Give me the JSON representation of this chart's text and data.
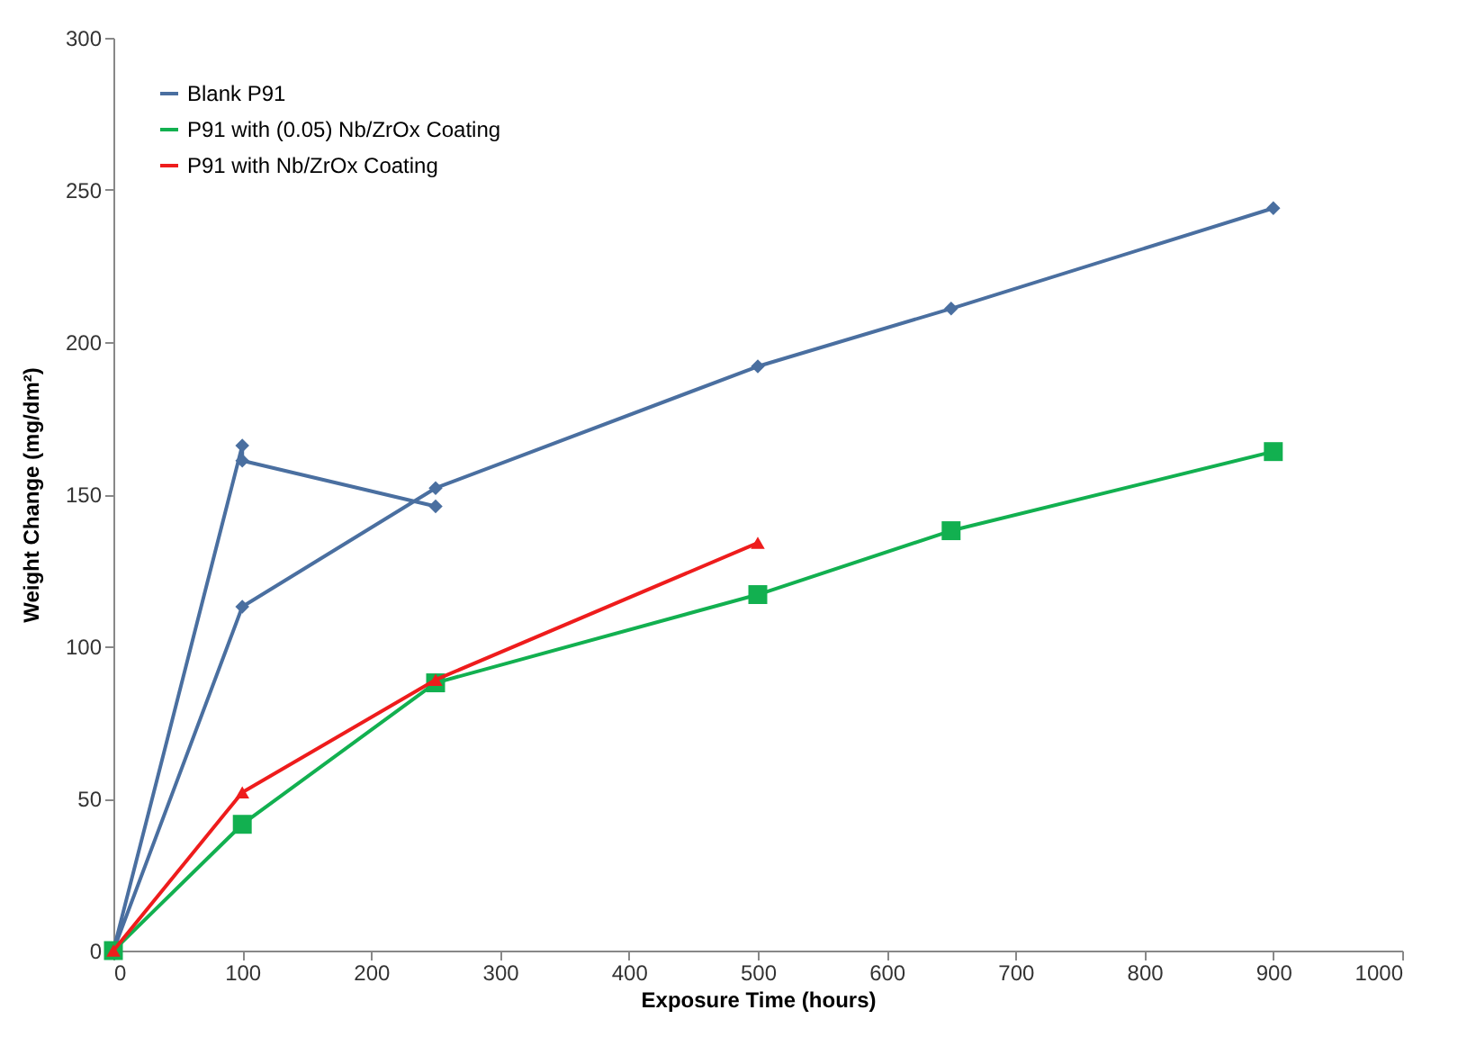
{
  "chart_data": {
    "type": "line",
    "xlabel": "Exposure Time (hours)",
    "ylabel": "Weight Change (mg/dm²)",
    "xlim": [
      0,
      1000
    ],
    "xticks": [
      0,
      100,
      200,
      300,
      400,
      500,
      600,
      700,
      800,
      900,
      1000
    ],
    "ylim": [
      0,
      300
    ],
    "yticks": [
      0,
      50,
      100,
      150,
      200,
      250,
      300
    ],
    "grid": false,
    "legend": "top left",
    "series": [
      {
        "name": "Blank P91",
        "color": "#4a6fa0",
        "marker": "diamond",
        "x": [
          250,
          100,
          100,
          0,
          100,
          250,
          500,
          650,
          900
        ],
        "values": [
          146,
          161,
          166,
          0,
          113,
          152,
          192,
          211,
          244
        ]
      },
      {
        "name": "P91 with (0.05) Nb/ZrOx Coating",
        "color": "#12b050",
        "marker": "square",
        "x": [
          0,
          100,
          250,
          500,
          650,
          900
        ],
        "values": [
          0,
          41.5,
          88,
          117,
          138,
          164
        ]
      },
      {
        "name": "P91 with Nb/ZrOx Coating",
        "color": "#ee1c1c",
        "marker": "triangle",
        "x": [
          0,
          100,
          250,
          500
        ],
        "values": [
          0,
          52,
          89,
          134
        ]
      }
    ]
  }
}
